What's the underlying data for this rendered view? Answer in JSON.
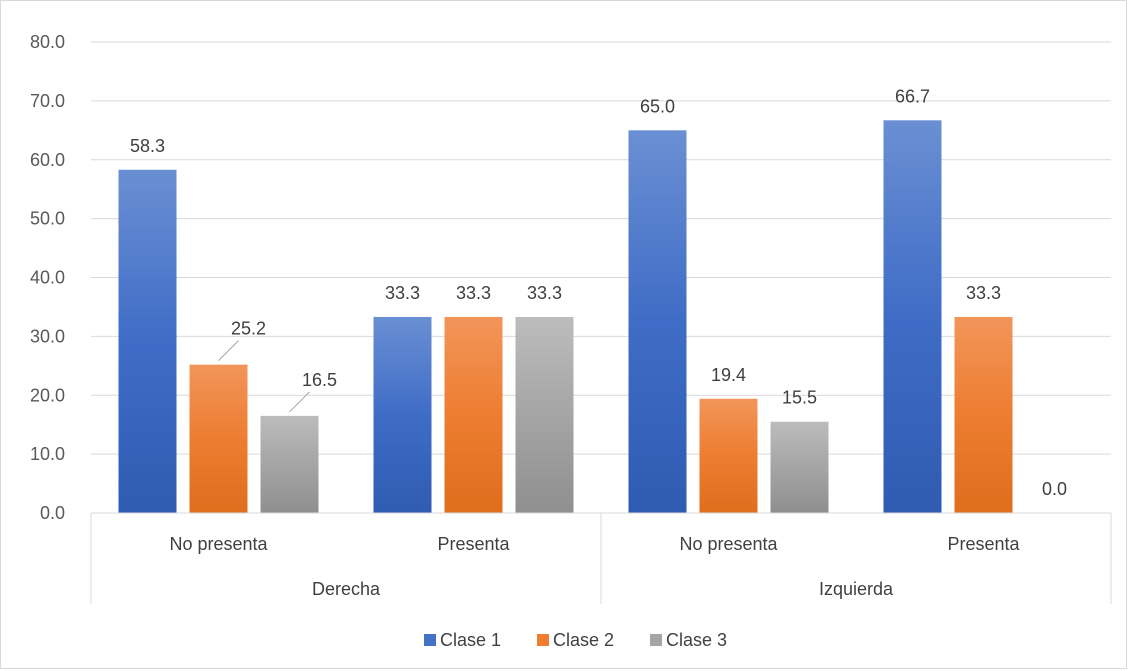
{
  "chart_data": {
    "type": "bar",
    "title": "",
    "xlabel": "",
    "ylabel": "",
    "ylim": [
      0,
      80
    ],
    "yticks": [
      "0.0",
      "10.0",
      "20.0",
      "30.0",
      "40.0",
      "50.0",
      "60.0",
      "70.0",
      "80.0"
    ],
    "grid": true,
    "legend_position": "bottom",
    "groups": [
      {
        "label": "Derecha",
        "categories": [
          "No presenta",
          "Presenta"
        ]
      },
      {
        "label": "Izquierda",
        "categories": [
          "No presenta",
          "Presenta"
        ]
      }
    ],
    "categories": [
      "No presenta",
      "Presenta",
      "No presenta",
      "Presenta"
    ],
    "series": [
      {
        "name": "Clase 1",
        "color": "#4472c4",
        "values": [
          58.3,
          33.3,
          65.0,
          66.7
        ],
        "labels": [
          "58.3",
          "33.3",
          "65.0",
          "66.7"
        ]
      },
      {
        "name": "Clase 2",
        "color": "#ed7d31",
        "values": [
          25.2,
          33.3,
          19.4,
          33.3
        ],
        "labels": [
          "25.2",
          "33.3",
          "19.4",
          "33.3"
        ]
      },
      {
        "name": "Clase 3",
        "color": "#a5a5a5",
        "values": [
          16.5,
          33.3,
          15.5,
          0.0
        ],
        "labels": [
          "16.5",
          "33.3",
          "15.5",
          "0.0"
        ]
      }
    ]
  }
}
